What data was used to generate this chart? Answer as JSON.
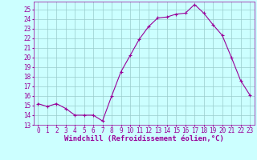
{
  "x": [
    0,
    1,
    2,
    3,
    4,
    5,
    6,
    7,
    8,
    9,
    10,
    11,
    12,
    13,
    14,
    15,
    16,
    17,
    18,
    19,
    20,
    21,
    22,
    23
  ],
  "y": [
    15.2,
    14.9,
    15.2,
    14.7,
    14.0,
    14.0,
    14.0,
    13.4,
    16.0,
    18.5,
    20.2,
    21.9,
    23.2,
    24.1,
    24.2,
    24.5,
    24.6,
    25.5,
    24.6,
    23.4,
    22.3,
    20.0,
    17.6,
    16.1
  ],
  "line_color": "#990099",
  "marker": "+",
  "markersize": 3,
  "linewidth": 0.8,
  "bg_color": "#ccffff",
  "grid_color": "#99cccc",
  "xlabel": "Windchill (Refroidissement éolien,°C)",
  "xlabel_color": "#990099",
  "tick_color": "#990099",
  "xlim": [
    -0.5,
    23.5
  ],
  "ylim": [
    13.0,
    25.8
  ],
  "yticks": [
    13,
    14,
    15,
    16,
    17,
    18,
    19,
    20,
    21,
    22,
    23,
    24,
    25
  ],
  "xticks": [
    0,
    1,
    2,
    3,
    4,
    5,
    6,
    7,
    8,
    9,
    10,
    11,
    12,
    13,
    14,
    15,
    16,
    17,
    18,
    19,
    20,
    21,
    22,
    23
  ],
  "xtick_labels": [
    "0",
    "1",
    "2",
    "3",
    "4",
    "5",
    "6",
    "7",
    "8",
    "9",
    "10",
    "11",
    "12",
    "13",
    "14",
    "15",
    "16",
    "17",
    "18",
    "19",
    "20",
    "21",
    "22",
    "23"
  ],
  "ytick_labels": [
    "13",
    "14",
    "15",
    "16",
    "17",
    "18",
    "19",
    "20",
    "21",
    "22",
    "23",
    "24",
    "25"
  ],
  "tick_fontsize": 5.5,
  "xlabel_fontsize": 6.5
}
